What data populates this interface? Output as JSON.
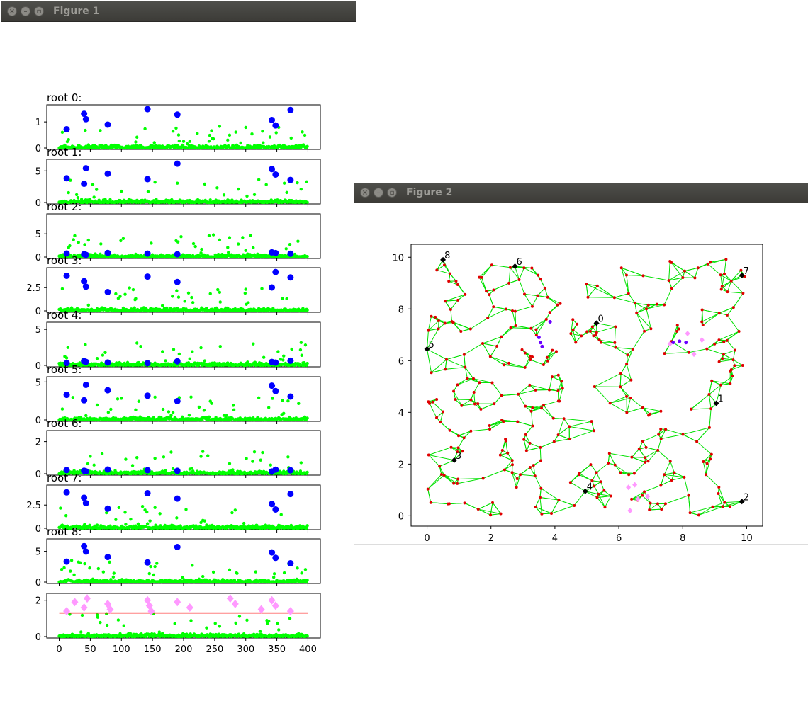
{
  "windows": [
    {
      "title": "Figure 1"
    },
    {
      "title": "Figure 2"
    }
  ],
  "figure1": {
    "subplots": [
      {
        "title": "root 0:",
        "yticks": [
          0,
          1
        ],
        "ylim": [
          0,
          1.6
        ]
      },
      {
        "title": "root 1:",
        "yticks": [
          0,
          5
        ],
        "ylim": [
          0,
          6.6
        ]
      },
      {
        "title": "root 2:",
        "yticks": [
          0,
          5
        ],
        "ylim": [
          0,
          9.0
        ]
      },
      {
        "title": "root 3:",
        "yticks": [
          0.0,
          2.5
        ],
        "ylim": [
          0,
          4.5
        ]
      },
      {
        "title": "root 4:",
        "yticks": [
          0,
          5
        ],
        "ylim": [
          0,
          5.8
        ]
      },
      {
        "title": "root 5:",
        "yticks": [
          0,
          5
        ],
        "ylim": [
          0,
          5.5
        ]
      },
      {
        "title": "root 6:",
        "yticks": [
          0,
          2
        ],
        "ylim": [
          0,
          2.6
        ]
      },
      {
        "title": "root 7:",
        "yticks": [
          0.0,
          2.5
        ],
        "ylim": [
          0,
          4.5
        ]
      },
      {
        "title": "root 8:",
        "yticks": [
          0,
          5
        ],
        "ylim": [
          0,
          6.8
        ]
      },
      {
        "title": "",
        "yticks": [
          0,
          2
        ],
        "ylim": [
          0,
          2.3
        ]
      }
    ],
    "xticks": [
      0,
      50,
      100,
      150,
      200,
      250,
      300,
      350,
      400
    ]
  },
  "chart_data": [
    {
      "type": "scatter",
      "title": "",
      "xlabel": "",
      "ylabel": "",
      "xlim": [
        -20,
        420
      ],
      "series": [
        {
          "name": "",
          "color": "#00ff00",
          "marker": "small-circle",
          "description_values": "400 points per subplot, mostly near 0 with sparse spikes"
        },
        {
          "name": "",
          "color": "#0000ff",
          "marker": "large-circle",
          "x": [
            12,
            40,
            43,
            78,
            142,
            190,
            342,
            348,
            372
          ]
        },
        {
          "name": "",
          "color": "#ff99ff",
          "marker": "diamond",
          "x": [
            12,
            25,
            40,
            45,
            78,
            82,
            142,
            145,
            148,
            190,
            210,
            275,
            283,
            325,
            342,
            348,
            372
          ]
        }
      ],
      "threshold_line": {
        "y": 1.3,
        "color": "#ff0000"
      }
    },
    {
      "type": "scatter",
      "title": "",
      "xlim": [
        -0.5,
        10.5
      ],
      "ylim": [
        -0.4,
        10.5
      ],
      "xticks": [
        0,
        2,
        4,
        6,
        8,
        10
      ],
      "yticks": [
        0,
        2,
        4,
        6,
        8,
        10
      ],
      "roots": [
        {
          "label": "0",
          "x": 5.3,
          "y": 7.45
        },
        {
          "label": "1",
          "x": 9.05,
          "y": 4.35
        },
        {
          "label": "2",
          "x": 9.85,
          "y": 0.55
        },
        {
          "label": "3",
          "x": 0.85,
          "y": 2.15
        },
        {
          "label": "4",
          "x": 4.95,
          "y": 0.95
        },
        {
          "label": "5",
          "x": 0.0,
          "y": 6.45
        },
        {
          "label": "6",
          "x": 2.75,
          "y": 9.65
        },
        {
          "label": "7",
          "x": 9.85,
          "y": 9.3
        },
        {
          "label": "8",
          "x": 0.5,
          "y": 9.9
        }
      ],
      "colors": {
        "nodes": "#e00000",
        "edges": "#00e000",
        "roots": "#000000",
        "highlight_a": "#6a00ff",
        "highlight_b": "#ff99ff"
      }
    }
  ]
}
